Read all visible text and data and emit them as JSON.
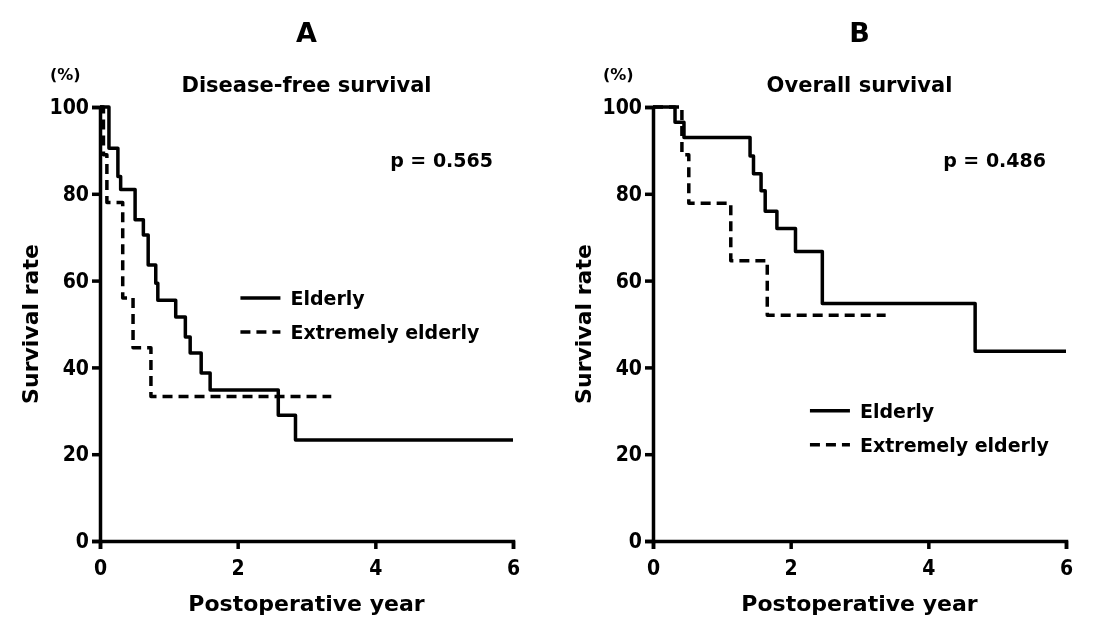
{
  "chart_data": [
    {
      "type": "step",
      "title": "A",
      "subtitle": "Disease-free survival",
      "xlabel": "Postoperative year",
      "ylabel": "Survival rate",
      "annotations": [
        "(%)",
        "p = 0.565"
      ],
      "xlim": [
        0,
        6
      ],
      "xticks": [
        0,
        2,
        4,
        6
      ],
      "ylim": [
        0,
        100
      ],
      "yticks": [
        0,
        20,
        40,
        60,
        80,
        100
      ],
      "grid": false,
      "legend": "right",
      "series": [
        {
          "name": "Elderly",
          "color": "#000000",
          "line_style": "solid",
          "x": [
            0,
            0.13,
            0.26,
            0.3,
            0.51,
            0.63,
            0.7,
            0.81,
            0.84,
            1.1,
            1.24,
            1.31,
            1.47,
            1.6,
            2.59,
            2.84,
            6
          ],
          "values": [
            100,
            90.5,
            84,
            81,
            74,
            70.5,
            63.6,
            59.4,
            55.5,
            51.6,
            47,
            43.3,
            38.7,
            34.8,
            29,
            23.3,
            23.3
          ]
        },
        {
          "name": "Extremely elderly",
          "color": "#000000",
          "line_style": "dashed",
          "x": [
            0,
            0.05,
            0.1,
            0.33,
            0.48,
            0.74,
            3.36
          ],
          "values": [
            100,
            89,
            78,
            56,
            44.5,
            33.3,
            33.3
          ]
        }
      ]
    },
    {
      "type": "step",
      "title": "B",
      "subtitle": "Overall survival",
      "xlabel": "Postoperative year",
      "ylabel": "Survival rate",
      "annotations": [
        "(%)",
        "p = 0.486"
      ],
      "xlim": [
        0,
        6
      ],
      "xticks": [
        0,
        2,
        4,
        6
      ],
      "ylim": [
        0,
        100
      ],
      "yticks": [
        0,
        20,
        40,
        60,
        80,
        100
      ],
      "grid": false,
      "legend": "bottom right",
      "series": [
        {
          "name": "Elderly",
          "color": "#000000",
          "line_style": "solid",
          "x": [
            0,
            0.32,
            0.45,
            1.41,
            1.46,
            1.57,
            1.63,
            1.8,
            2.07,
            2.46,
            4.68,
            6
          ],
          "values": [
            100,
            96.5,
            93,
            88.7,
            84.6,
            80.7,
            76,
            72,
            66.7,
            54.7,
            43.7,
            43.7
          ]
        },
        {
          "name": "Extremely elderly",
          "color": "#000000",
          "line_style": "dashed",
          "x": [
            0,
            0.42,
            0.52,
            1.13,
            1.66,
            3.38
          ],
          "values": [
            100,
            89,
            77.8,
            64.6,
            52,
            52
          ]
        }
      ]
    }
  ]
}
